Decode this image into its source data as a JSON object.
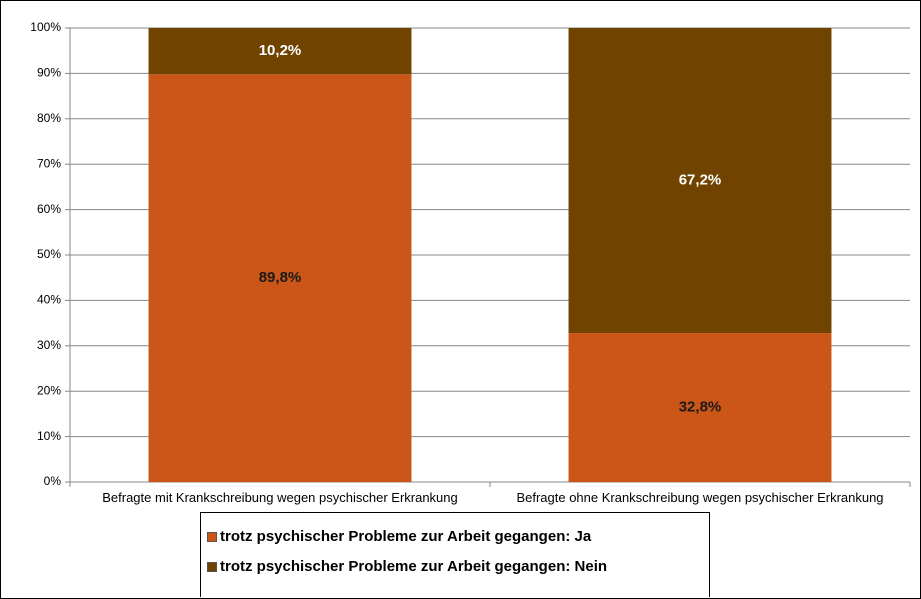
{
  "chart_data": {
    "type": "stacked_bar",
    "categories": [
      "Befragte mit Krankschreibung wegen psychischer Erkrankung",
      "Befragte ohne Krankschreibung wegen psychischer Erkrankung"
    ],
    "series": [
      {
        "name": "trotz psychischer Probleme zur Arbeit gegangen: Ja",
        "color": "#cc5617",
        "label_color": "#1a1a1a",
        "values": [
          89.8,
          32.8
        ],
        "value_labels": [
          "89,8%",
          "32,8%"
        ]
      },
      {
        "name": "trotz psychischer Probleme zur Arbeit gegangen: Nein",
        "color": "#704400",
        "label_color": "#ffffff",
        "values": [
          10.2,
          67.2
        ],
        "value_labels": [
          "10,2%",
          "67,2%"
        ]
      }
    ],
    "ylim": [
      0,
      100
    ],
    "yticks": [
      {
        "value": 0,
        "label": "0%"
      },
      {
        "value": 10,
        "label": "10%"
      },
      {
        "value": 20,
        "label": "20%"
      },
      {
        "value": 30,
        "label": "30%"
      },
      {
        "value": 40,
        "label": "40%"
      },
      {
        "value": 50,
        "label": "50%"
      },
      {
        "value": 60,
        "label": "60%"
      },
      {
        "value": 70,
        "label": "70%"
      },
      {
        "value": 80,
        "label": "80%"
      },
      {
        "value": 90,
        "label": "90%"
      },
      {
        "value": 100,
        "label": "100%"
      }
    ],
    "grid": true,
    "legend": "bottom"
  }
}
